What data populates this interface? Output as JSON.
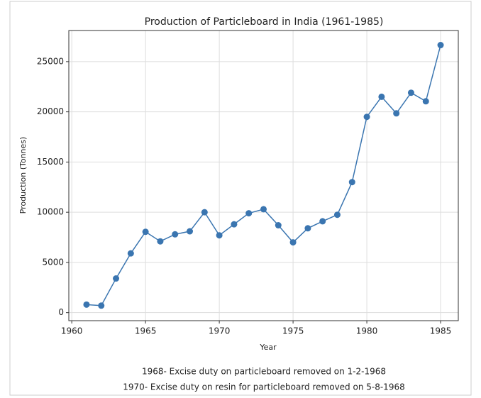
{
  "chart_data": {
    "type": "line",
    "title": "Production of Particleboard in India (1961-1985)",
    "x_label": "Year",
    "y_label": "Production (Tonnes)",
    "x": [
      1961,
      1962,
      1963,
      1964,
      1965,
      1966,
      1967,
      1968,
      1969,
      1970,
      1971,
      1972,
      1973,
      1974,
      1975,
      1976,
      1977,
      1978,
      1979,
      1980,
      1981,
      1982,
      1983,
      1984,
      1985
    ],
    "series": [
      {
        "name": "Production",
        "color": "#3a75b0",
        "values": [
          800,
          700,
          3400,
          5900,
          8050,
          7100,
          7800,
          8100,
          10000,
          7700,
          8800,
          9900,
          10300,
          8700,
          7000,
          8400,
          9100,
          9750,
          13000,
          19500,
          21500,
          19850,
          21900,
          21050,
          26650
        ]
      }
    ],
    "xlim": [
      1959.8,
      1986.2
    ],
    "ylim": [
      -800,
      28100
    ],
    "xticks": [
      1960,
      1965,
      1970,
      1975,
      1980,
      1985
    ],
    "yticks": [
      0,
      5000,
      10000,
      15000,
      20000,
      25000
    ],
    "grid": true,
    "annotations": [
      "1968- Excise duty on particleboard removed on 1-2-1968",
      "1970- Excise duty on resin for particleboard removed on 5-8-1968"
    ]
  }
}
